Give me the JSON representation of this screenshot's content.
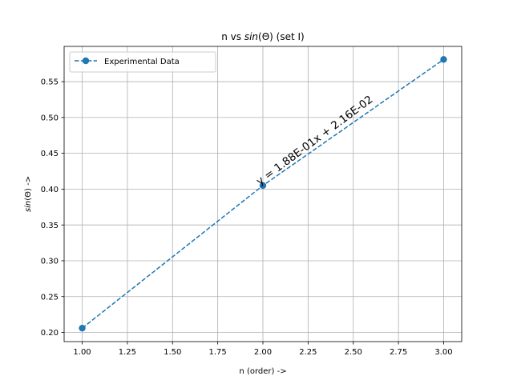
{
  "chart_data": {
    "type": "line",
    "title": "n vs sin(Θ) (set I)",
    "title_parts": {
      "prefix": "n vs ",
      "italic": "sin",
      "suffix": "(Θ) (set I)"
    },
    "xlabel": "n (order) ->",
    "ylabel": "sin(Θ) ->",
    "ylabel_parts": {
      "italic": "sin",
      "suffix": "(Θ) ->"
    },
    "xlim": [
      0.9,
      3.1
    ],
    "ylim": [
      0.1872,
      0.5992
    ],
    "x_ticks": [
      1.0,
      1.25,
      1.5,
      1.75,
      2.0,
      2.25,
      2.5,
      2.75,
      3.0
    ],
    "x_tick_labels": [
      "1.00",
      "1.25",
      "1.50",
      "1.75",
      "2.00",
      "2.25",
      "2.50",
      "2.75",
      "3.00"
    ],
    "y_ticks": [
      0.2,
      0.25,
      0.3,
      0.35,
      0.4,
      0.45,
      0.5,
      0.55
    ],
    "y_tick_labels": [
      "0.20",
      "0.25",
      "0.30",
      "0.35",
      "0.40",
      "0.45",
      "0.50",
      "0.55"
    ],
    "grid": true,
    "legend_position": "top-left",
    "series": [
      {
        "name": "Experimental Data",
        "color": "#1f77b4",
        "line_style": "dashed",
        "marker": "circle",
        "x": [
          1.0,
          2.0,
          3.0
        ],
        "y": [
          0.206,
          0.405,
          0.581
        ]
      }
    ],
    "annotations": [
      {
        "text": "y = 1.88E-01x + 2.16E-02",
        "x": 2.0,
        "y": 0.405
      }
    ]
  }
}
